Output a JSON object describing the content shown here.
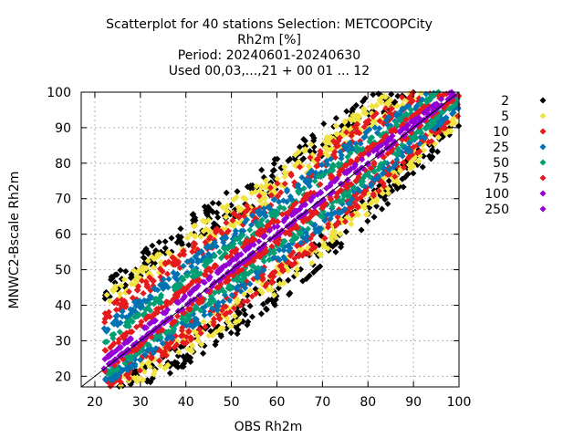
{
  "chart_data": {
    "type": "scatter",
    "title_lines": [
      "Scatterplot for   40 stations Selection: METCOOPCity",
      "Rh2m [%]",
      "Period: 20240601-20240630",
      "Used 00,03,...,21 + 00 01 ... 12"
    ],
    "xlabel": "OBS Rh2m",
    "ylabel": "MNWC2-Bscale Rh2m",
    "xlim": [
      17,
      100
    ],
    "ylim": [
      17,
      100
    ],
    "xticks": [
      20,
      30,
      40,
      50,
      60,
      70,
      80,
      90,
      100
    ],
    "yticks": [
      20,
      30,
      40,
      50,
      60,
      70,
      80,
      90,
      100
    ],
    "grid": true,
    "diagonal_line": true,
    "legend_position": "right",
    "legend": [
      {
        "label": "2",
        "color": "#000000"
      },
      {
        "label": "5",
        "color": "#f0e442"
      },
      {
        "label": "10",
        "color": "#e41a1c"
      },
      {
        "label": "25",
        "color": "#0072b2"
      },
      {
        "label": "50",
        "color": "#009e73"
      },
      {
        "label": "75",
        "color": "#e41a1c"
      },
      {
        "label": "100",
        "color": "#9400d3"
      },
      {
        "label": "250",
        "color": "#9400d3"
      }
    ],
    "density_bands": [
      {
        "color": "#000000",
        "offset": 19
      },
      {
        "color": "#f0e442",
        "offset": 16
      },
      {
        "color": "#e41a1c",
        "offset": 12.5
      },
      {
        "color": "#0072b2",
        "offset": 9
      },
      {
        "color": "#009e73",
        "offset": 6
      },
      {
        "color": "#e41a1c",
        "offset": 3.5
      },
      {
        "color": "#9400d3",
        "offset": 1.5
      }
    ]
  }
}
